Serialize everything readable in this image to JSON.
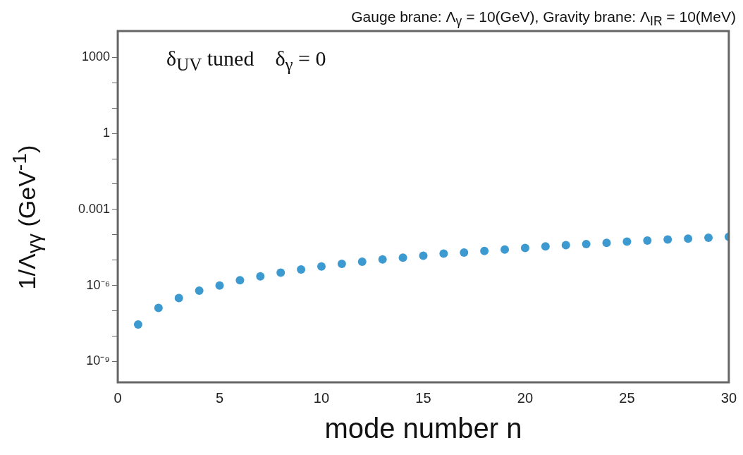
{
  "chart_data": {
    "type": "scatter",
    "title": "Gauge brane: Λ$_{γ}$ = 10(GeV), Gravity brane: Λ$_{IR}$ = 10(MeV)",
    "xlabel": "mode number n",
    "ylabel": "1/Λ$_{γγ}$ (GeV$^{-1}$)",
    "annotations": [
      "δ$_{UV}$ tuned    δ$_{γ}$ = 0"
    ],
    "x": [
      1,
      2,
      3,
      4,
      5,
      6,
      7,
      8,
      9,
      10,
      11,
      12,
      13,
      14,
      15,
      16,
      17,
      18,
      19,
      20,
      21,
      22,
      23,
      24,
      25,
      26,
      27,
      28,
      29,
      30
    ],
    "series": [
      {
        "color": "#3d9ad1",
        "values": [
          2.9e-08,
          1.3e-07,
          3.2e-07,
          6.2e-07,
          1e-06,
          1.6e-06,
          2.3e-06,
          3.2e-06,
          4.3e-06,
          5.6e-06,
          7.1e-06,
          8.7e-06,
          1.07e-05,
          1.26e-05,
          1.5e-05,
          1.8e-05,
          2e-05,
          2.3e-05,
          2.6e-05,
          3e-05,
          3.5e-05,
          3.9e-05,
          4.3e-05,
          4.8e-05,
          5.4e-05,
          5.9e-05,
          6.5e-05,
          7.1e-05,
          7.6e-05,
          8.3e-05
        ]
      }
    ],
    "xlim": [
      0,
      30
    ],
    "xticks": [
      0,
      5,
      10,
      15,
      20,
      25,
      30
    ],
    "ylim": [
      1.5e-10,
      11000
    ],
    "yticks": [
      {
        "value": 1e-09,
        "label": "10⁻⁹"
      },
      {
        "value": 1e-08,
        "label": null
      },
      {
        "value": 1e-07,
        "label": null
      },
      {
        "value": 1e-06,
        "label": "10⁻⁶"
      },
      {
        "value": 1e-05,
        "label": null
      },
      {
        "value": 0.0001,
        "label": null
      },
      {
        "value": 0.001,
        "label": "0.001"
      },
      {
        "value": 0.01,
        "label": null
      },
      {
        "value": 0.1,
        "label": null
      },
      1,
      {
        "value": 10,
        "label": null
      },
      {
        "value": 100,
        "label": null
      },
      1000
    ],
    "log": true,
    "grid": false,
    "legend": false,
    "marker": "circle"
  }
}
